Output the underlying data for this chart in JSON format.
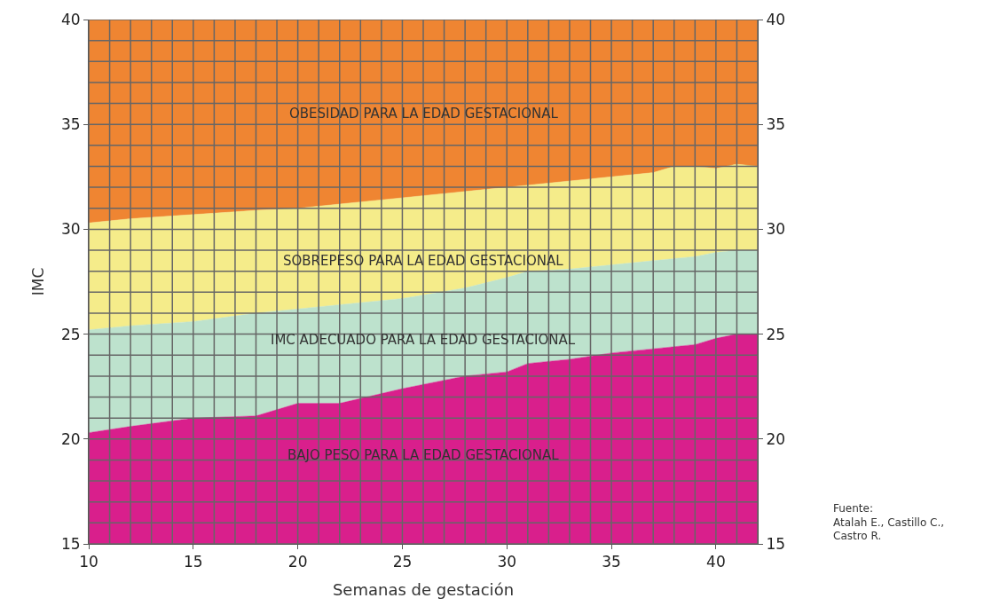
{
  "chart_data": {
    "type": "area",
    "xlabel": "Semanas de gestación",
    "ylabel": "IMC",
    "x": [
      10,
      12,
      15,
      18,
      20,
      22,
      25,
      28,
      30,
      31,
      33,
      35,
      37,
      38,
      39,
      40,
      41,
      42
    ],
    "series": [
      {
        "color": "#d91f8c",
        "values": [
          20.3,
          20.6,
          21.0,
          21.1,
          21.7,
          21.7,
          22.4,
          23.0,
          23.2,
          23.6,
          23.8,
          24.1,
          24.3,
          24.4,
          24.5,
          24.8,
          25.0,
          25.0
        ]
      },
      {
        "color": "#bde2cd",
        "values": [
          25.2,
          25.4,
          25.6,
          26.0,
          26.2,
          26.4,
          26.7,
          27.2,
          27.7,
          28.0,
          28.1,
          28.3,
          28.5,
          28.6,
          28.7,
          28.9,
          29.0,
          29.0
        ]
      },
      {
        "color": "#f5ec8a",
        "values": [
          30.3,
          30.5,
          30.7,
          30.9,
          31.0,
          31.2,
          31.5,
          31.8,
          32.0,
          32.1,
          32.3,
          32.5,
          32.7,
          33.0,
          33.0,
          32.9,
          33.1,
          33.0
        ]
      },
      {
        "color": "#ef8532",
        "values": [
          40,
          40,
          40,
          40,
          40,
          40,
          40,
          40,
          40,
          40,
          40,
          40,
          40,
          40,
          40,
          40,
          40,
          40
        ]
      }
    ],
    "xlim": [
      10,
      42
    ],
    "xticks": [
      10,
      15,
      20,
      25,
      30,
      35,
      40
    ],
    "ylim": [
      15,
      40
    ],
    "yticks": [
      15,
      20,
      25,
      30,
      35,
      40
    ],
    "y2lim": [
      15,
      40
    ],
    "y2ticks": [
      15,
      20,
      25,
      30,
      35,
      40
    ],
    "grid": true,
    "annotations": [
      "OBESIDAD PARA LA EDAD GESTACIONAL",
      "SOBREPESO PARA LA EDAD GESTACIONAL",
      "IMC ADECUADO PARA LA EDAD GESTACIONAL",
      "BAJO PESO PARA LA EDAD GESTACIONAL",
      "Fuente:\nAtalah E., Castillo C.,\nCastro R."
    ]
  }
}
